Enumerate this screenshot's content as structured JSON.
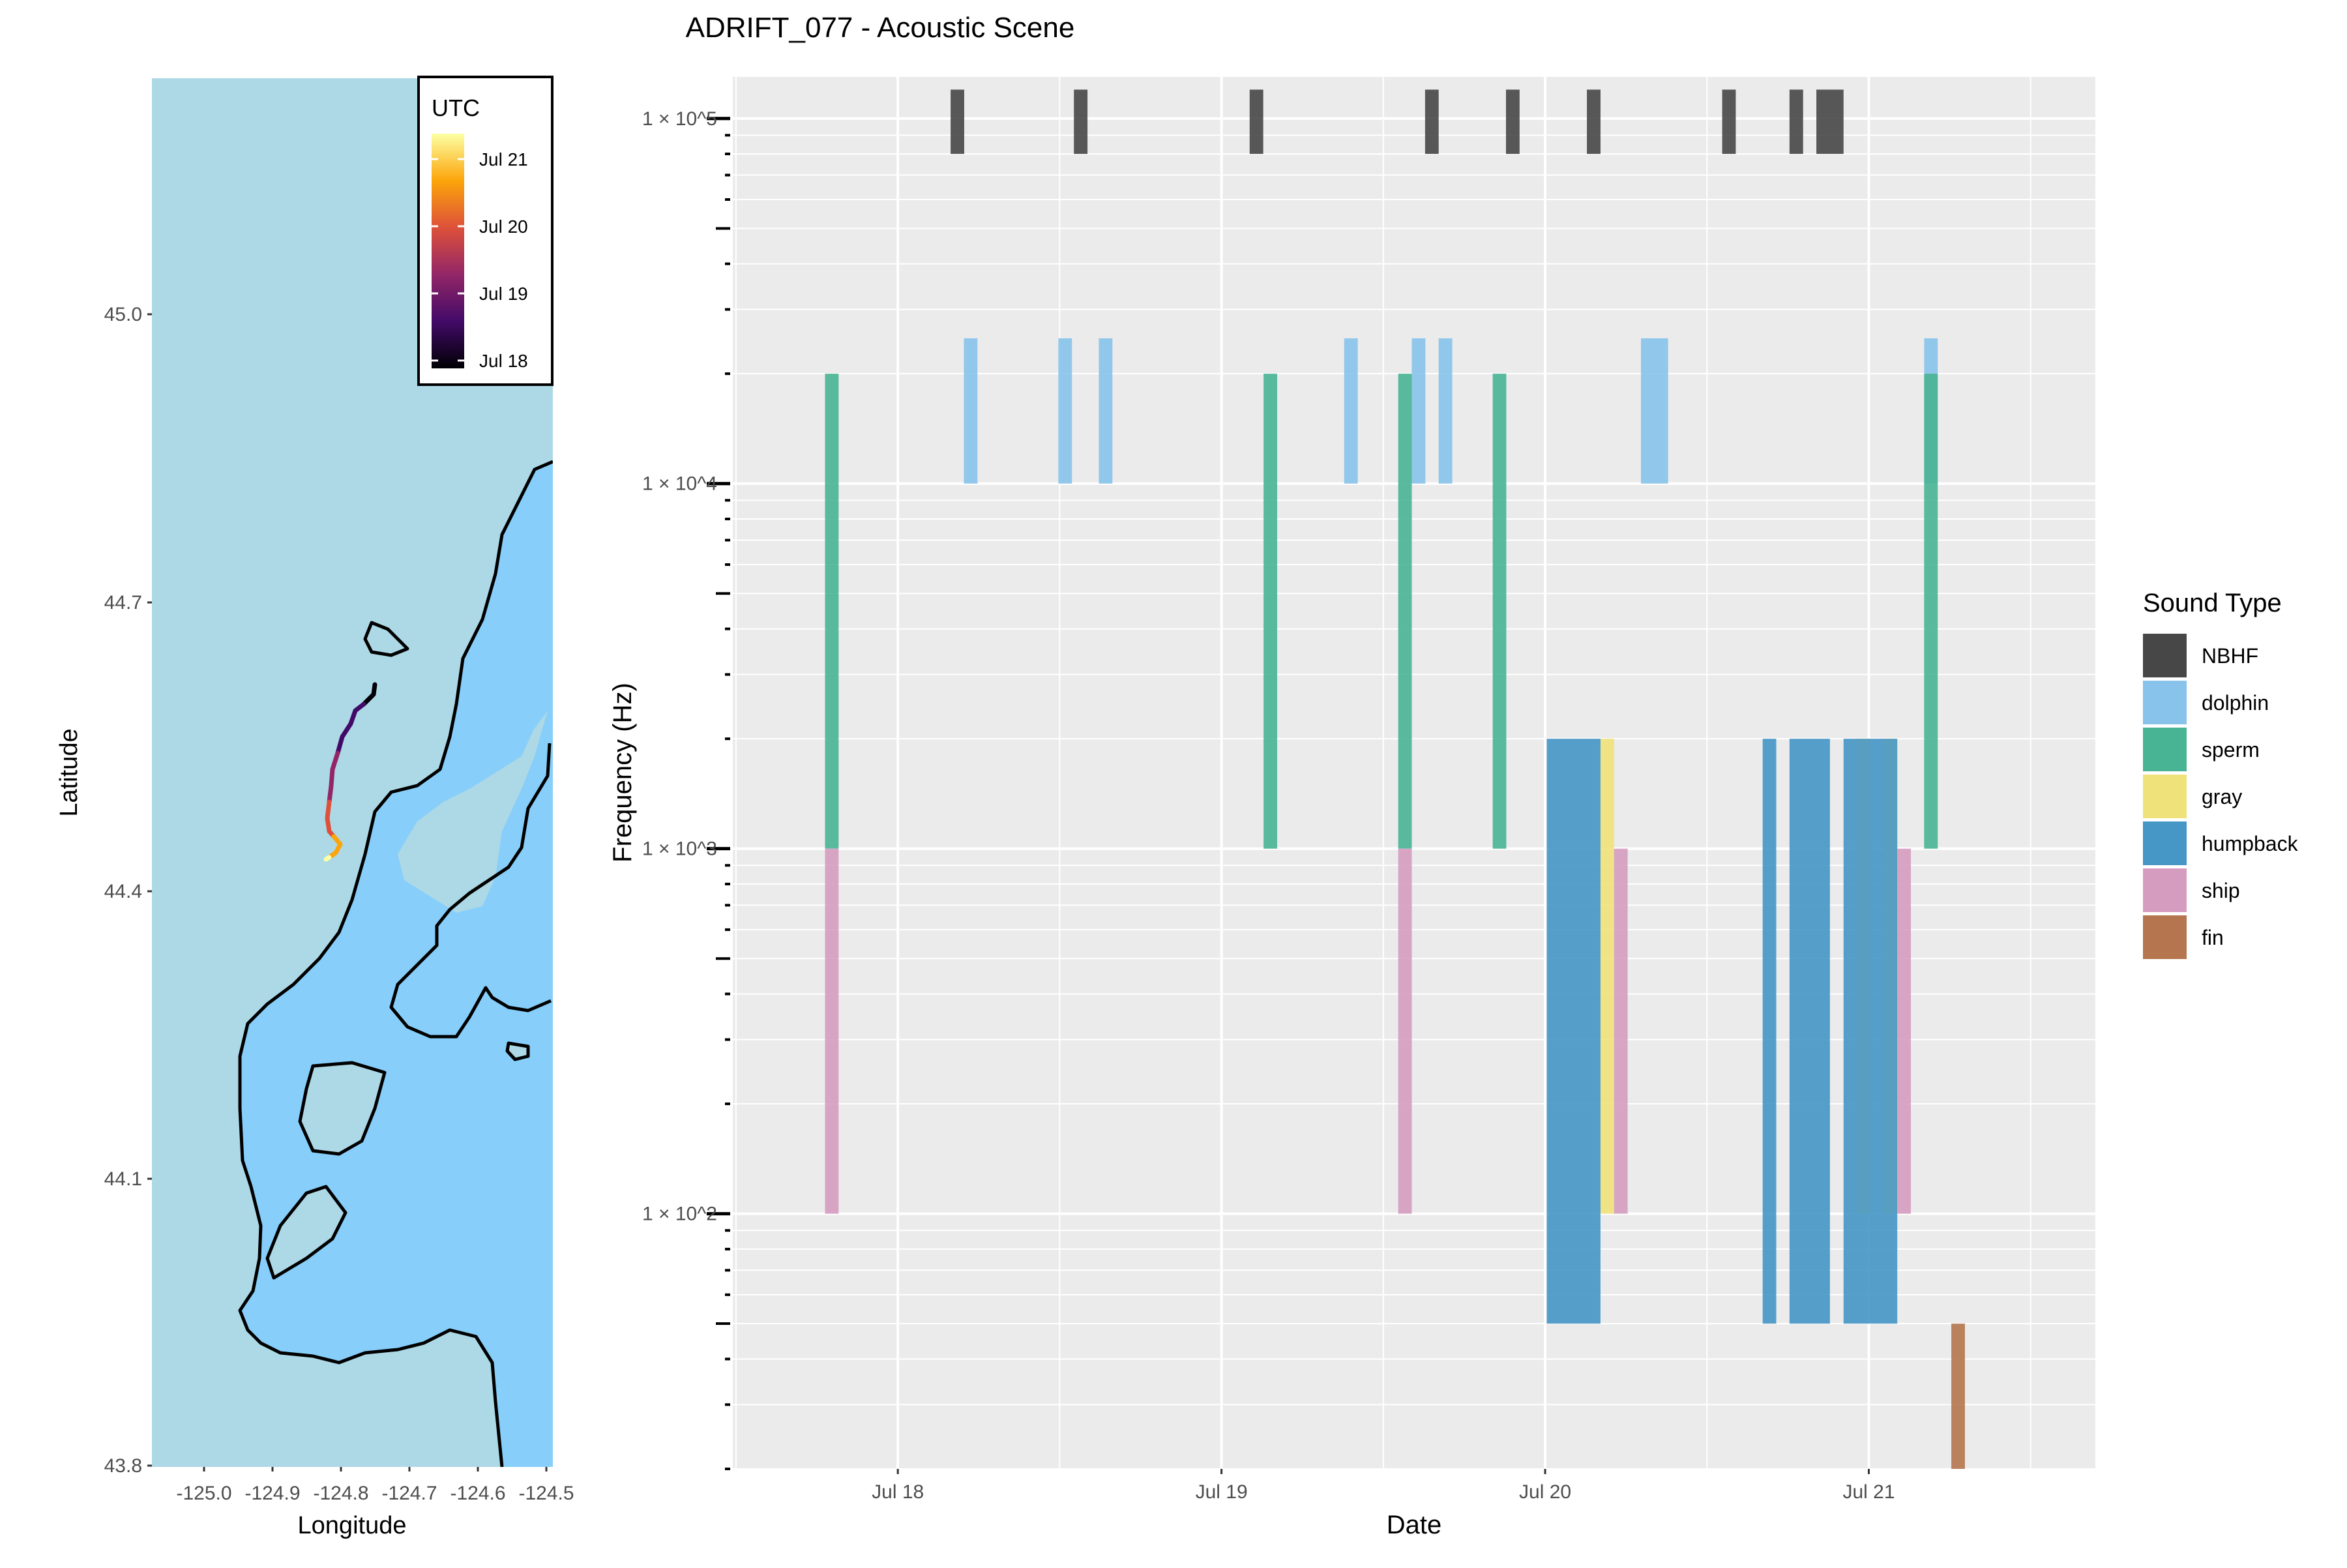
{
  "title": "ADRIFT_077 - Acoustic Scene",
  "colors": {
    "panel_bg": "#ebebeb",
    "grid": "#ffffff",
    "ocean_deep": "#87cefa",
    "ocean_shelf": "#add8e6",
    "contour": "#000000"
  },
  "map": {
    "xlabel": "Longitude",
    "ylabel": "Latitude",
    "x_ticks": [
      "-125.0",
      "-124.9",
      "-124.8",
      "-124.7",
      "-124.6",
      "-124.5"
    ],
    "y_ticks": [
      "43.8",
      "44.1",
      "44.4",
      "44.7",
      "45.0"
    ],
    "legend_title": "UTC",
    "legend_labels": [
      "Jul 21",
      "Jul 20",
      "Jul 19",
      "Jul 18"
    ],
    "legend_colors": [
      "#fcffa4",
      "#fca50a",
      "#dd513a",
      "#932667",
      "#420a68",
      "#000004"
    ]
  },
  "chart_data": {
    "type": "bar",
    "title": "ADRIFT_077 - Acoustic Scene",
    "xlabel": "Date",
    "ylabel": "Frequency (Hz)",
    "x_ticks": [
      "Jul 18",
      "Jul 19",
      "Jul 20",
      "Jul 21"
    ],
    "y_scale": "log10",
    "y_ticks": [
      "1 × 10^2",
      "1 × 10^3",
      "1 × 10^4",
      "1 × 10^5"
    ],
    "ylim": [
      20,
      130000
    ],
    "xlim_days": [
      17.49,
      21.7
    ],
    "legend_title": "Sound Type",
    "legend_position": "right",
    "series": [
      {
        "name": "NBHF",
        "color": "#474747",
        "low": 80000,
        "high": 120000,
        "spans": [
          [
            18.163,
            18.205
          ],
          [
            18.544,
            18.586
          ],
          [
            19.087,
            19.129
          ],
          [
            19.629,
            19.671
          ],
          [
            19.879,
            19.921
          ],
          [
            20.129,
            20.171
          ],
          [
            20.547,
            20.589
          ],
          [
            20.755,
            20.797
          ],
          [
            20.838,
            20.922
          ]
        ]
      },
      {
        "name": "dolphin",
        "color": "#87c3ea",
        "low": 10000,
        "high": 25000,
        "spans": [
          [
            18.204,
            18.246
          ],
          [
            18.496,
            18.538
          ],
          [
            18.621,
            18.663
          ],
          [
            19.379,
            19.421
          ],
          [
            19.588,
            19.63
          ],
          [
            19.671,
            19.713
          ],
          [
            20.296,
            20.38
          ],
          [
            21.171,
            21.213
          ]
        ]
      },
      {
        "name": "sperm",
        "color": "#48b494",
        "low": 1000,
        "high": 20000,
        "spans": [
          [
            17.775,
            17.817
          ],
          [
            19.13,
            19.172
          ],
          [
            19.546,
            19.588
          ],
          [
            19.838,
            19.88
          ],
          [
            21.171,
            21.213
          ]
        ]
      },
      {
        "name": "gray",
        "color": "#efe27a",
        "low": 100,
        "high": 2000,
        "spans": [
          [
            20.171,
            20.213
          ],
          [
            20.963,
            21.005
          ],
          [
            21.046,
            21.088
          ]
        ]
      },
      {
        "name": "humpback",
        "color": "#4696c6",
        "low": 50,
        "high": 2000,
        "spans": [
          [
            20.005,
            20.171
          ],
          [
            20.672,
            20.714
          ],
          [
            20.755,
            20.88
          ],
          [
            20.922,
            21.088
          ]
        ]
      },
      {
        "name": "ship",
        "color": "#d69cc0",
        "low": 100,
        "high": 1000,
        "spans": [
          [
            17.775,
            17.817
          ],
          [
            19.546,
            19.588
          ],
          [
            20.213,
            20.255
          ],
          [
            21.088,
            21.13
          ]
        ]
      },
      {
        "name": "fin",
        "color": "#b5754e",
        "low": 20,
        "high": 50,
        "spans": [
          [
            21.255,
            21.297
          ]
        ]
      }
    ]
  }
}
